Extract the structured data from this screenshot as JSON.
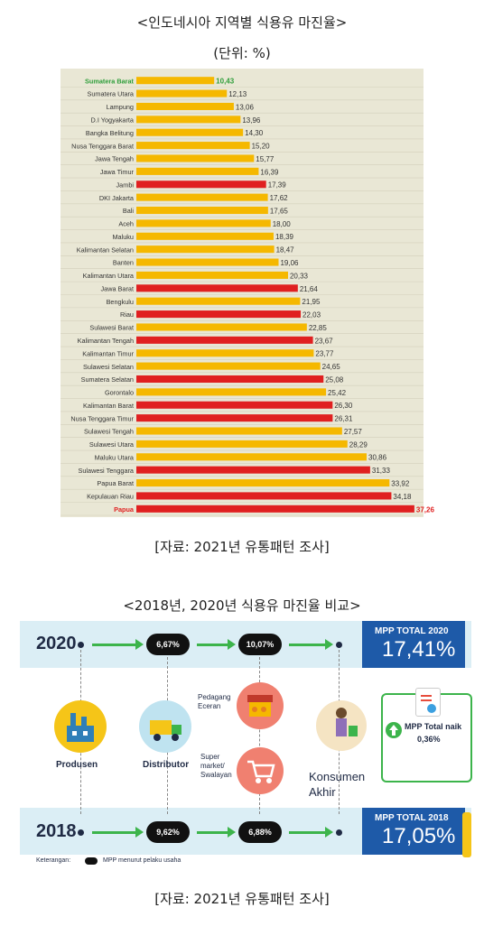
{
  "chart_title": "<인도네시아 지역별 식용유 마진율>",
  "chart_unit": "(단위: %)",
  "source1": "[자료: 2021년 유통패턴 조사]",
  "chart_data": {
    "type": "bar",
    "orientation": "horizontal",
    "title": "<인도네시아 지역별 식용유 마진율>",
    "unit": "(단위: %)",
    "categories": [
      "Sumatera Barat",
      "Sumatera Utara",
      "Lampung",
      "D.I Yogyakarta",
      "Bangka Belitung",
      "Nusa Tenggara Barat",
      "Jawa Tengah",
      "Jawa Timur",
      "Jambi",
      "DKI Jakarta",
      "Bali",
      "Aceh",
      "Maluku",
      "Kalimantan Selatan",
      "Banten",
      "Kalimantan Utara",
      "Jawa Barat",
      "Bengkulu",
      "Riau",
      "Sulawesi Barat",
      "Kalimantan Tengah",
      "Kalimantan Timur",
      "Sulawesi Selatan",
      "Sumatera Selatan",
      "Gorontalo",
      "Kalimantan Barat",
      "Nusa Tenggara Timur",
      "Sulawesi Tengah",
      "Sulawesi Utara",
      "Maluku Utara",
      "Sulawesi Tenggara",
      "Papua Barat",
      "Kepulauan Riau",
      "Papua"
    ],
    "values": [
      10.43,
      12.13,
      13.06,
      13.96,
      14.3,
      15.2,
      15.77,
      16.39,
      17.39,
      17.62,
      17.65,
      18.0,
      18.39,
      18.47,
      19.06,
      20.33,
      21.64,
      21.95,
      22.03,
      22.85,
      23.67,
      23.77,
      24.65,
      25.08,
      25.42,
      26.3,
      26.31,
      27.57,
      28.29,
      30.86,
      31.33,
      33.92,
      34.18,
      37.26
    ],
    "value_labels": [
      "10,43",
      "12,13",
      "13,06",
      "13,96",
      "14,30",
      "15,20",
      "15,77",
      "16,39",
      "17,39",
      "17,62",
      "17,65",
      "18,00",
      "18,39",
      "18,47",
      "19,06",
      "20,33",
      "21,64",
      "21,95",
      "22,03",
      "22,85",
      "23,67",
      "23,77",
      "24,65",
      "25,08",
      "25,42",
      "26,30",
      "26,31",
      "27,57",
      "28,29",
      "30,86",
      "31,33",
      "33,92",
      "34,18",
      "37,26"
    ],
    "bar_colors": [
      "#f5b800",
      "#f5b800",
      "#f5b800",
      "#f5b800",
      "#f5b800",
      "#f5b800",
      "#f5b800",
      "#f5b800",
      "#e02020",
      "#f5b800",
      "#f5b800",
      "#f5b800",
      "#f5b800",
      "#f5b800",
      "#f5b800",
      "#f5b800",
      "#e02020",
      "#f5b800",
      "#e02020",
      "#f5b800",
      "#e02020",
      "#f5b800",
      "#f5b800",
      "#e02020",
      "#f5b800",
      "#e02020",
      "#e02020",
      "#f5b800",
      "#f5b800",
      "#f5b800",
      "#e02020",
      "#f5b800",
      "#e02020",
      "#e02020"
    ],
    "highlight": {
      "min_index": 0,
      "min_color": "#2e9e3a",
      "max_index": 33,
      "max_color": "#e02020"
    },
    "xlim": [
      0,
      38
    ],
    "colors": {
      "yellow": "#f5b800",
      "red": "#e02020",
      "background": "#e9e7d5"
    }
  },
  "infographic": {
    "title": "<2018년, 2020년 식용유 마진율 비교>",
    "year_top": "2020",
    "year_bottom": "2018",
    "pill_2020_a": "6,67%",
    "pill_2020_b": "10,07%",
    "pill_2018_a": "9,62%",
    "pill_2018_b": "6,88%",
    "total_2020_label": "MPP TOTAL 2020",
    "total_2020_value": "17,41%",
    "total_2018_label": "MPP TOTAL 2018",
    "total_2018_value": "17,05%",
    "produsen": "Produsen",
    "distributor": "Distributor",
    "pedagang": "Pedagang\nEceran",
    "supermarket": "Super\nmarket/\nSwalayan",
    "konsumen": "Konsumen\nAkhir",
    "naik_label": "MPP Total naik",
    "naik_value": "0,36%",
    "legend_prefix": "Keterangan:",
    "legend_text": "MPP menurut pelaku usaha",
    "colors": {
      "band": "#dbeef5",
      "total_box": "#1e5aa8",
      "arrow": "#3cb44b",
      "navy": "#1f2a44"
    },
    "icons": [
      "factory-icon",
      "truck-icon",
      "grocery-stall-icon",
      "shopping-cart-icon",
      "shopper-icon",
      "clipboard-check-icon",
      "up-arrow-icon",
      "oil-bottle-icon"
    ]
  },
  "source2": "[자료: 2021년 유통패턴 조사]"
}
